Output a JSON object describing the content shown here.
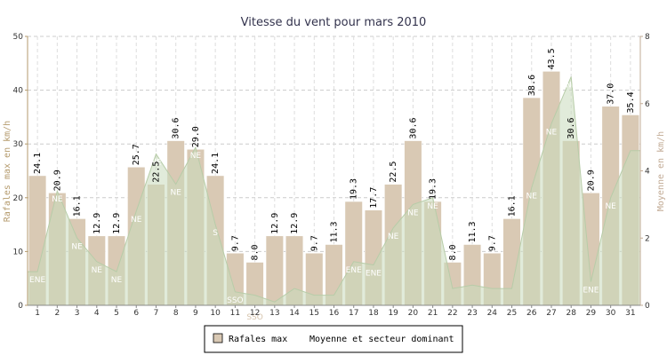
{
  "chart_data": {
    "type": "bar",
    "title": "Vitesse du vent pour mars 2010",
    "ylabel": "Rafales max en km/h",
    "y2label": "Moyenne en km/h",
    "ylim": [
      0,
      50
    ],
    "y2lim": [
      0,
      8
    ],
    "yticks": [
      "0",
      "10",
      "20",
      "30",
      "40",
      "50"
    ],
    "y2ticks": [
      "0",
      "2",
      "4",
      "6",
      "8"
    ],
    "grid": true,
    "legend_placement": "bottom",
    "categories": [
      "1",
      "2",
      "3",
      "4",
      "5",
      "6",
      "7",
      "8",
      "9",
      "10",
      "11",
      "12",
      "13",
      "14",
      "15",
      "16",
      "17",
      "18",
      "19",
      "20",
      "21",
      "22",
      "23",
      "24",
      "25",
      "26",
      "27",
      "28",
      "29",
      "30",
      "31"
    ],
    "series": [
      {
        "name": "Rafales max",
        "type": "bar",
        "axis": "left",
        "color": "#d9c9b4",
        "values": [
          24.1,
          20.9,
          16.1,
          12.9,
          12.9,
          25.7,
          22.5,
          30.6,
          29.0,
          24.1,
          9.7,
          8.0,
          12.9,
          12.9,
          9.7,
          11.3,
          19.3,
          17.7,
          22.5,
          30.6,
          19.3,
          8.0,
          11.3,
          9.7,
          16.1,
          38.6,
          43.5,
          30.6,
          20.9,
          37.0,
          35.4
        ],
        "labels": [
          "24.1",
          "20.9",
          "16.1",
          "12.9",
          "12.9",
          "25.7",
          "22.5",
          "30.6",
          "29.0",
          "24.1",
          "9.7",
          "8.0",
          "12.9",
          "12.9",
          "9.7",
          "11.3",
          "19.3",
          "17.7",
          "22.5",
          "30.6",
          "19.3",
          "8.0",
          "11.3",
          "9.7",
          "16.1",
          "38.6",
          "43.5",
          "30.6",
          "20.9",
          "37.0",
          "35.4"
        ]
      },
      {
        "name": "Moyenne et secteur dominant",
        "type": "area",
        "axis": "right",
        "color": "#c9dbbc",
        "values": [
          1.0,
          3.4,
          2.0,
          1.3,
          1.0,
          2.8,
          4.5,
          3.6,
          4.7,
          2.4,
          0.4,
          0.3,
          0.1,
          0.5,
          0.3,
          0.3,
          1.3,
          1.2,
          2.3,
          3.0,
          3.2,
          0.5,
          0.6,
          0.5,
          0.5,
          3.5,
          5.4,
          6.8,
          0.7,
          3.2,
          4.6
        ],
        "sectors": [
          "ENE",
          "NE",
          "NE",
          "NE",
          "NE",
          "NE",
          "NE",
          "NE",
          "NE",
          "S",
          "SSO",
          "SSO",
          "",
          "",
          "",
          "",
          "ENE",
          "ENE",
          "NE",
          "NE",
          "NE",
          "",
          "",
          "",
          "",
          "NE",
          "NE",
          "NE",
          "ENE",
          "NE",
          ""
        ]
      }
    ]
  }
}
